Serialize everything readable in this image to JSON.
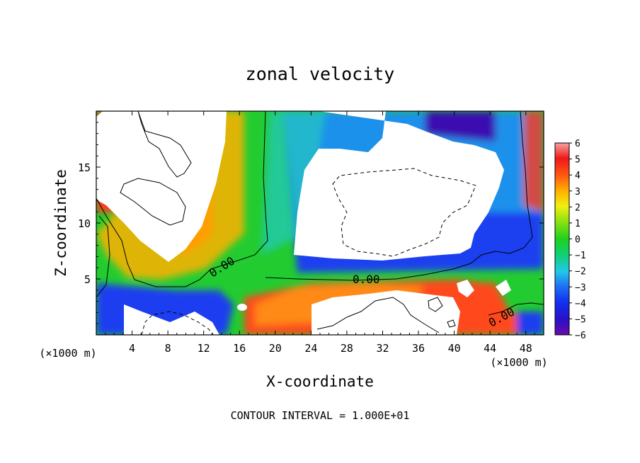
{
  "chart_data": {
    "type": "heatmap",
    "title": "zonal velocity",
    "xlabel": "X-coordinate",
    "ylabel": "Z-coordinate",
    "x_unit": "(×1000 m)",
    "z_unit": "(×1000 m)",
    "xlim": [
      0,
      50
    ],
    "ylim": [
      0,
      20
    ],
    "x_ticks": [
      "4",
      "8",
      "12",
      "16",
      "20",
      "24",
      "28",
      "32",
      "36",
      "40",
      "44",
      "48"
    ],
    "y_ticks": [
      "5",
      "10",
      "15"
    ],
    "colorbar": {
      "min": -6,
      "max": 6,
      "ticks": [
        "6",
        "5",
        "4",
        "3",
        "2",
        "1",
        "0",
        "−1",
        "−2",
        "−3",
        "−4",
        "−5",
        "−6"
      ]
    },
    "contour_labels": [
      "0.00",
      "0.00",
      "0.00"
    ],
    "footer": "CONTOUR INTERVAL = 1.000E+01",
    "grid": false,
    "legend": "colorbar-right"
  }
}
